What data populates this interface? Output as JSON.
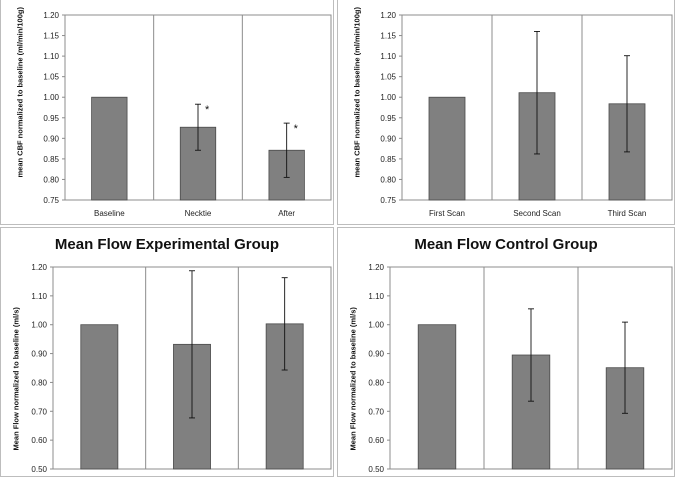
{
  "chart_data": [
    {
      "type": "bar",
      "title": "",
      "ylabel": "mean CBF normalized to baseline (ml/min/100g)",
      "categories": [
        "Baseline",
        "Necktie",
        "After"
      ],
      "values": [
        1.0,
        0.927,
        0.871
      ],
      "error": [
        0.002,
        0.056,
        0.066
      ],
      "significance": [
        "",
        "*",
        "*"
      ],
      "ylim": [
        0.75,
        1.2
      ],
      "yticks": [
        "0.75",
        "0.80",
        "0.85",
        "0.90",
        "0.95",
        "1.00",
        "1.05",
        "1.10",
        "1.15",
        "1.20"
      ],
      "grid": "vertical separators"
    },
    {
      "type": "bar",
      "title": "",
      "ylabel": "mean CBF normalized to baseline (ml/min/100g)",
      "categories": [
        "First Scan",
        "Second Scan",
        "Third Scan"
      ],
      "values": [
        1.0,
        1.011,
        0.984
      ],
      "error": [
        0.002,
        0.149,
        0.117
      ],
      "significance": [
        "",
        "",
        ""
      ],
      "ylim": [
        0.75,
        1.2
      ],
      "yticks": [
        "0.75",
        "0.80",
        "0.85",
        "0.90",
        "0.95",
        "1.00",
        "1.05",
        "1.10",
        "1.15",
        "1.20"
      ],
      "grid": "vertical separators"
    },
    {
      "type": "bar",
      "title": "Mean Flow Experimental Group",
      "ylabel": "Mean Flow normalized to baseline (ml/s)",
      "categories": [
        "",
        "",
        ""
      ],
      "values": [
        1.0,
        0.932,
        1.003
      ],
      "error": [
        0.0,
        0.255,
        0.16
      ],
      "significance": [
        "",
        "",
        ""
      ],
      "ylim": [
        0.5,
        1.2
      ],
      "yticks": [
        "0.50",
        "0.60",
        "0.70",
        "0.80",
        "0.90",
        "1.00",
        "1.10",
        "1.20"
      ],
      "grid": "vertical separators"
    },
    {
      "type": "bar",
      "title": "Mean Flow Control Group",
      "ylabel": "Mean Flow normalized to baseline (ml/s)",
      "categories": [
        "",
        "",
        ""
      ],
      "values": [
        1.0,
        0.895,
        0.851
      ],
      "error": [
        0.0,
        0.16,
        0.158
      ],
      "significance": [
        "",
        "",
        ""
      ],
      "ylim": [
        0.5,
        1.2
      ],
      "yticks": [
        "0.50",
        "0.60",
        "0.70",
        "0.80",
        "0.90",
        "1.00",
        "1.10",
        "1.20"
      ],
      "grid": "vertical separators"
    }
  ],
  "colors": {
    "bar": "#808080",
    "bar_outline": "#4a4a4a",
    "frame": "#bdbdbd"
  }
}
